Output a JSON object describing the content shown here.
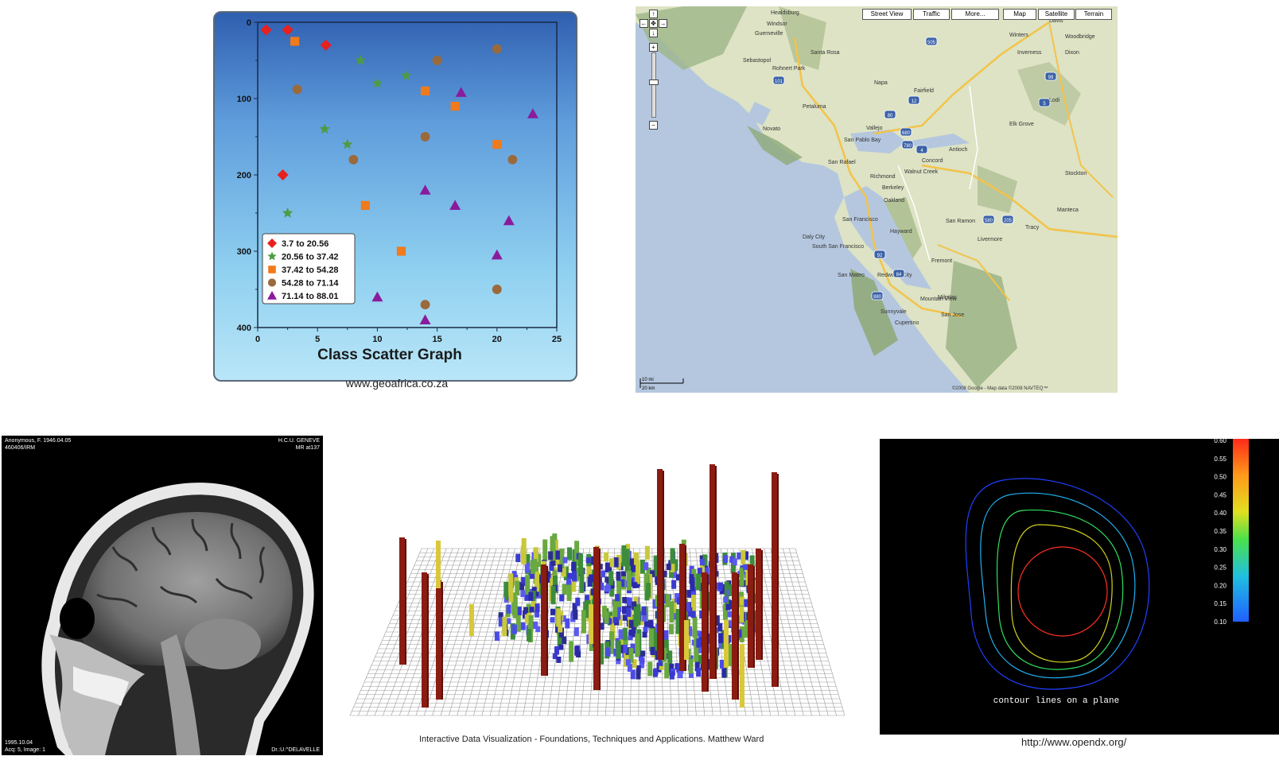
{
  "scatter": {
    "chart_data": {
      "type": "scatter",
      "title": "Class Scatter Graph",
      "xlim": [
        0,
        25
      ],
      "ylim": [
        0,
        400
      ],
      "y_inverted": true,
      "xticks": [
        "0",
        "5",
        "10",
        "15",
        "20",
        "25"
      ],
      "yticks": [
        "0",
        "100",
        "200",
        "300",
        "400"
      ],
      "legend_position": "bottom-left",
      "series": [
        {
          "name": "3.7 to 20.56",
          "marker": "diamond",
          "color": "#e8201e",
          "points": [
            [
              0.7,
              10
            ],
            [
              2.5,
              10
            ],
            [
              5.7,
              30
            ],
            [
              2.1,
              200
            ]
          ]
        },
        {
          "name": "20.56 to 37.42",
          "marker": "star",
          "color": "#4f9b44",
          "points": [
            [
              8.6,
              50
            ],
            [
              10,
              80
            ],
            [
              12.4,
              70
            ],
            [
              5.6,
              140
            ],
            [
              7.5,
              160
            ],
            [
              2.5,
              250
            ]
          ]
        },
        {
          "name": "37.42 to 54.28",
          "marker": "square",
          "color": "#f07a1c",
          "points": [
            [
              3.1,
              25
            ],
            [
              14,
              90
            ],
            [
              16.5,
              110
            ],
            [
              20,
              160
            ],
            [
              9,
              240
            ],
            [
              12,
              300
            ]
          ]
        },
        {
          "name": "54.28 to 71.14",
          "marker": "circle",
          "color": "#9a6a3c",
          "points": [
            [
              3.3,
              88
            ],
            [
              15,
              50
            ],
            [
              20,
              35
            ],
            [
              14,
              150
            ],
            [
              8,
              180
            ],
            [
              21.3,
              180
            ],
            [
              20,
              350
            ],
            [
              14,
              370
            ]
          ]
        },
        {
          "name": "71.14 to 88.01",
          "marker": "triangle",
          "color": "#8a1c9c",
          "points": [
            [
              17,
              92
            ],
            [
              23,
              120
            ],
            [
              14,
              220
            ],
            [
              16.5,
              240
            ],
            [
              21,
              260
            ],
            [
              20,
              305
            ],
            [
              10,
              360
            ],
            [
              14,
              390
            ]
          ]
        }
      ]
    },
    "caption": "www.geoafrica.co.za"
  },
  "map": {
    "buttons": [
      "Street View",
      "Traffic",
      "More...",
      "Map",
      "Satellite",
      "Terrain"
    ],
    "zoom_plus": "+",
    "zoom_minus": "−",
    "places": [
      "Healdsburg",
      "Windsor",
      "Santa Rosa",
      "Guerneville",
      "Sebastopol",
      "Rohnert Park",
      "Petaluma",
      "Napa",
      "Fairfield",
      "Davis",
      "Dixon",
      "Winters",
      "Inverness",
      "Novato",
      "Vallejo",
      "San Pablo Bay",
      "San Rafael",
      "Richmond",
      "Berkeley",
      "Oakland",
      "Concord",
      "Antioch",
      "Stockton",
      "San Francisco",
      "Daly City",
      "South San Francisco",
      "San Mateo",
      "Redwood City",
      "Hayward",
      "Fremont",
      "Livermore",
      "Tracy",
      "San Ramon",
      "Walnut Creek",
      "Sunnyvale",
      "Mountain View",
      "Milpitas",
      "San Jose",
      "Cupertino",
      "Manteca",
      "Lodi",
      "Elk Grove",
      "Woodbridge"
    ],
    "highways": [
      "101",
      "80",
      "680",
      "780",
      "505",
      "5",
      "99",
      "580",
      "205",
      "92",
      "84",
      "880",
      "4",
      "12"
    ],
    "scale": [
      "10 mi",
      "20 km"
    ],
    "copyright": "©2008 Google - Map data ©2008 NAVTEQ™"
  },
  "mri": {
    "top_left": [
      "Anonymous, F. 1946.04.05",
      "460406/IRM"
    ],
    "top_right": [
      "H.C.U. GENEVE",
      "MR at137"
    ],
    "bottom_left": [
      "1995.10.04",
      "Acq: 5, Image: 1"
    ],
    "bottom_right": "Dr.:U.^DELAVELLE"
  },
  "bars": {
    "caption": "Interactive Data Visualization - Foundations, Techniques and Applications. Matthew Ward"
  },
  "contour": {
    "label": "contour lines on a plane",
    "colorbar_ticks": [
      "0.60",
      "0.55",
      "0.50",
      "0.45",
      "0.40",
      "0.35",
      "0.30",
      "0.25",
      "0.20",
      "0.15",
      "0.10"
    ],
    "caption": "http://www.opendx.org/"
  }
}
